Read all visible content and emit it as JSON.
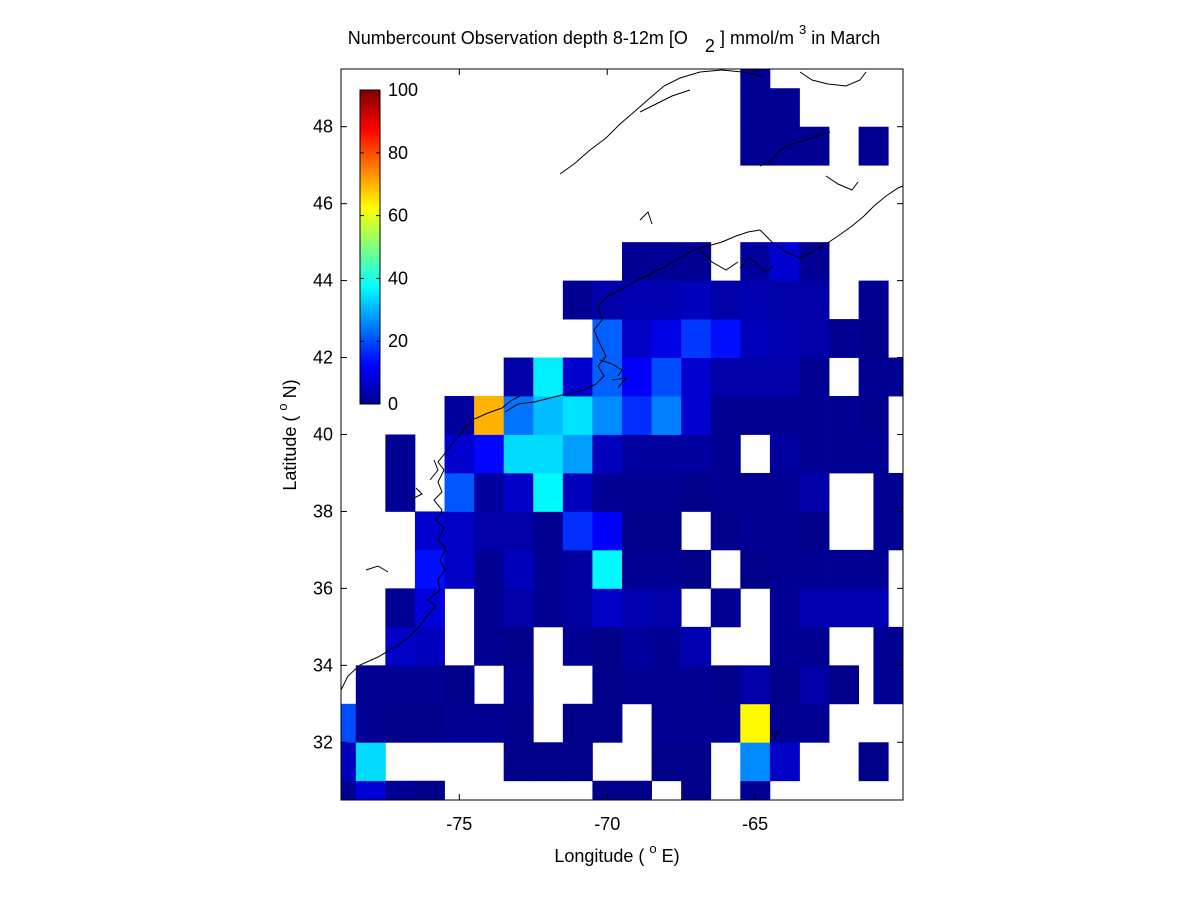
{
  "chart_data": {
    "type": "heatmap",
    "title": {
      "main": "Numbercount Observation depth 8-12m [O",
      "sub": "2",
      "unit_start": "] mmol/m",
      "sup": "3",
      "end": " in March"
    },
    "xlabel": {
      "start": "Longitude ( ",
      "sup": "o",
      "end": "E)"
    },
    "ylabel": {
      "start": "Latitude ( ",
      "sup": "o",
      "end": "N)"
    },
    "xlim": [
      -79,
      -60
    ],
    "ylim": [
      30.5,
      49.5
    ],
    "x_ticks": [
      -75,
      -70,
      -65
    ],
    "x_tick_labels": [
      "-75",
      "-70",
      "-65"
    ],
    "y_ticks": [
      32,
      34,
      36,
      38,
      40,
      42,
      44,
      46,
      48
    ],
    "y_tick_labels": [
      "32",
      "34",
      "36",
      "38",
      "40",
      "42",
      "44",
      "46",
      "48"
    ],
    "cell_size_deg": 1,
    "colorbar": {
      "range": [
        0,
        100
      ],
      "ticks": [
        0,
        20,
        40,
        60,
        80,
        100
      ],
      "tick_labels": [
        "0",
        "20",
        "40",
        "60",
        "80",
        "100"
      ],
      "colormap": "jet",
      "placement": "inside-top-left"
    },
    "cells": [
      {
        "lon": -79,
        "lat": 30.5,
        "v": 2
      },
      {
        "lon": -78,
        "lat": 30.5,
        "v": 9
      },
      {
        "lon": -77,
        "lat": 30.5,
        "v": 2
      },
      {
        "lon": -76,
        "lat": 30.5,
        "v": 1
      },
      {
        "lon": -70,
        "lat": 30.5,
        "v": 1
      },
      {
        "lon": -69,
        "lat": 30.5,
        "v": 1
      },
      {
        "lon": -67,
        "lat": 30.5,
        "v": 1
      },
      {
        "lon": -65,
        "lat": 30.5,
        "v": 2
      },
      {
        "lon": -79,
        "lat": 31.5,
        "v": 6
      },
      {
        "lon": -78,
        "lat": 31.5,
        "v": 34
      },
      {
        "lon": -73,
        "lat": 31.5,
        "v": 1
      },
      {
        "lon": -72,
        "lat": 31.5,
        "v": 1
      },
      {
        "lon": -71,
        "lat": 31.5,
        "v": 1
      },
      {
        "lon": -68,
        "lat": 31.5,
        "v": 1
      },
      {
        "lon": -67,
        "lat": 31.5,
        "v": 1
      },
      {
        "lon": -65,
        "lat": 31.5,
        "v": 26
      },
      {
        "lon": -64,
        "lat": 31.5,
        "v": 7
      },
      {
        "lon": -61,
        "lat": 31.5,
        "v": 1
      },
      {
        "lon": -79,
        "lat": 32.5,
        "v": 20
      },
      {
        "lon": -78,
        "lat": 32.5,
        "v": 2
      },
      {
        "lon": -77,
        "lat": 32.5,
        "v": 1
      },
      {
        "lon": -76,
        "lat": 32.5,
        "v": 1
      },
      {
        "lon": -75,
        "lat": 32.5,
        "v": 2
      },
      {
        "lon": -74,
        "lat": 32.5,
        "v": 2
      },
      {
        "lon": -73,
        "lat": 32.5,
        "v": 1
      },
      {
        "lon": -71,
        "lat": 32.5,
        "v": 1
      },
      {
        "lon": -70,
        "lat": 32.5,
        "v": 1
      },
      {
        "lon": -68,
        "lat": 32.5,
        "v": 2
      },
      {
        "lon": -67,
        "lat": 32.5,
        "v": 2
      },
      {
        "lon": -66,
        "lat": 32.5,
        "v": 2
      },
      {
        "lon": -65,
        "lat": 32.5,
        "v": 63
      },
      {
        "lon": -64,
        "lat": 32.5,
        "v": 2
      },
      {
        "lon": -63,
        "lat": 32.5,
        "v": 2
      },
      {
        "lon": -78,
        "lat": 33.5,
        "v": 2
      },
      {
        "lon": -77,
        "lat": 33.5,
        "v": 2
      },
      {
        "lon": -76,
        "lat": 33.5,
        "v": 2
      },
      {
        "lon": -75,
        "lat": 33.5,
        "v": 1
      },
      {
        "lon": -73,
        "lat": 33.5,
        "v": 2
      },
      {
        "lon": -70,
        "lat": 33.5,
        "v": 1
      },
      {
        "lon": -69,
        "lat": 33.5,
        "v": 2
      },
      {
        "lon": -68,
        "lat": 33.5,
        "v": 2
      },
      {
        "lon": -67,
        "lat": 33.5,
        "v": 2
      },
      {
        "lon": -66,
        "lat": 33.5,
        "v": 1
      },
      {
        "lon": -65,
        "lat": 33.5,
        "v": 4
      },
      {
        "lon": -64,
        "lat": 33.5,
        "v": 1
      },
      {
        "lon": -63,
        "lat": 33.5,
        "v": 4
      },
      {
        "lon": -62,
        "lat": 33.5,
        "v": 1
      },
      {
        "lon": -60.5,
        "lat": 33.5,
        "v": 2
      },
      {
        "lon": -77,
        "lat": 34.5,
        "v": 7
      },
      {
        "lon": -76,
        "lat": 34.5,
        "v": 6
      },
      {
        "lon": -74,
        "lat": 34.5,
        "v": 2
      },
      {
        "lon": -73,
        "lat": 34.5,
        "v": 1
      },
      {
        "lon": -71,
        "lat": 34.5,
        "v": 2
      },
      {
        "lon": -70,
        "lat": 34.5,
        "v": 1
      },
      {
        "lon": -69,
        "lat": 34.5,
        "v": 3
      },
      {
        "lon": -68,
        "lat": 34.5,
        "v": 2
      },
      {
        "lon": -67,
        "lat": 34.5,
        "v": 5
      },
      {
        "lon": -64,
        "lat": 34.5,
        "v": 2
      },
      {
        "lon": -63,
        "lat": 34.5,
        "v": 2
      },
      {
        "lon": -60.5,
        "lat": 34.5,
        "v": 2
      },
      {
        "lon": -77,
        "lat": 35.5,
        "v": 2
      },
      {
        "lon": -76,
        "lat": 35.5,
        "v": 9
      },
      {
        "lon": -74,
        "lat": 35.5,
        "v": 2
      },
      {
        "lon": -73,
        "lat": 35.5,
        "v": 4
      },
      {
        "lon": -72,
        "lat": 35.5,
        "v": 2
      },
      {
        "lon": -71,
        "lat": 35.5,
        "v": 3
      },
      {
        "lon": -70,
        "lat": 35.5,
        "v": 7
      },
      {
        "lon": -69,
        "lat": 35.5,
        "v": 5
      },
      {
        "lon": -68,
        "lat": 35.5,
        "v": 4
      },
      {
        "lon": -66,
        "lat": 35.5,
        "v": 2
      },
      {
        "lon": -64,
        "lat": 35.5,
        "v": 2
      },
      {
        "lon": -63,
        "lat": 35.5,
        "v": 5
      },
      {
        "lon": -62,
        "lat": 35.5,
        "v": 5
      },
      {
        "lon": -61,
        "lat": 35.5,
        "v": 5
      },
      {
        "lon": -76,
        "lat": 36.5,
        "v": 14
      },
      {
        "lon": -75,
        "lat": 36.5,
        "v": 7
      },
      {
        "lon": -74,
        "lat": 36.5,
        "v": 2
      },
      {
        "lon": -73,
        "lat": 36.5,
        "v": 6
      },
      {
        "lon": -72,
        "lat": 36.5,
        "v": 2
      },
      {
        "lon": -71,
        "lat": 36.5,
        "v": 3
      },
      {
        "lon": -70,
        "lat": 36.5,
        "v": 37
      },
      {
        "lon": -69,
        "lat": 36.5,
        "v": 2
      },
      {
        "lon": -68,
        "lat": 36.5,
        "v": 2
      },
      {
        "lon": -67,
        "lat": 36.5,
        "v": 1
      },
      {
        "lon": -65,
        "lat": 36.5,
        "v": 1
      },
      {
        "lon": -64,
        "lat": 36.5,
        "v": 2
      },
      {
        "lon": -63,
        "lat": 36.5,
        "v": 2
      },
      {
        "lon": -62,
        "lat": 36.5,
        "v": 2
      },
      {
        "lon": -61,
        "lat": 36.5,
        "v": 2
      },
      {
        "lon": -76,
        "lat": 37.5,
        "v": 8
      },
      {
        "lon": -75,
        "lat": 37.5,
        "v": 7
      },
      {
        "lon": -74,
        "lat": 37.5,
        "v": 4
      },
      {
        "lon": -73,
        "lat": 37.5,
        "v": 4
      },
      {
        "lon": -72,
        "lat": 37.5,
        "v": 2
      },
      {
        "lon": -71,
        "lat": 37.5,
        "v": 17
      },
      {
        "lon": -70,
        "lat": 37.5,
        "v": 12
      },
      {
        "lon": -69,
        "lat": 37.5,
        "v": 1
      },
      {
        "lon": -68,
        "lat": 37.5,
        "v": 1
      },
      {
        "lon": -66,
        "lat": 37.5,
        "v": 1
      },
      {
        "lon": -65,
        "lat": 37.5,
        "v": 2
      },
      {
        "lon": -64,
        "lat": 37.5,
        "v": 2
      },
      {
        "lon": -63,
        "lat": 37.5,
        "v": 1
      },
      {
        "lon": -60.5,
        "lat": 37.5,
        "v": 2
      },
      {
        "lon": -77,
        "lat": 38.5,
        "v": 2
      },
      {
        "lon": -75,
        "lat": 38.5,
        "v": 21
      },
      {
        "lon": -74,
        "lat": 38.5,
        "v": 3
      },
      {
        "lon": -73,
        "lat": 38.5,
        "v": 7
      },
      {
        "lon": -72,
        "lat": 38.5,
        "v": 37
      },
      {
        "lon": -71,
        "lat": 38.5,
        "v": 6
      },
      {
        "lon": -70,
        "lat": 38.5,
        "v": 2
      },
      {
        "lon": -69,
        "lat": 38.5,
        "v": 2
      },
      {
        "lon": -68,
        "lat": 38.5,
        "v": 2
      },
      {
        "lon": -67,
        "lat": 38.5,
        "v": 1
      },
      {
        "lon": -66,
        "lat": 38.5,
        "v": 2
      },
      {
        "lon": -65,
        "lat": 38.5,
        "v": 2
      },
      {
        "lon": -64,
        "lat": 38.5,
        "v": 2
      },
      {
        "lon": -63,
        "lat": 38.5,
        "v": 4
      },
      {
        "lon": -60.5,
        "lat": 38.5,
        "v": 2
      },
      {
        "lon": -77,
        "lat": 39.5,
        "v": 2
      },
      {
        "lon": -75,
        "lat": 39.5,
        "v": 8
      },
      {
        "lon": -74,
        "lat": 39.5,
        "v": 13
      },
      {
        "lon": -73,
        "lat": 39.5,
        "v": 34
      },
      {
        "lon": -72,
        "lat": 39.5,
        "v": 34
      },
      {
        "lon": -71,
        "lat": 39.5,
        "v": 28
      },
      {
        "lon": -70,
        "lat": 39.5,
        "v": 6
      },
      {
        "lon": -69,
        "lat": 39.5,
        "v": 3
      },
      {
        "lon": -68,
        "lat": 39.5,
        "v": 3
      },
      {
        "lon": -67,
        "lat": 39.5,
        "v": 3
      },
      {
        "lon": -66,
        "lat": 39.5,
        "v": 2
      },
      {
        "lon": -64,
        "lat": 39.5,
        "v": 3
      },
      {
        "lon": -63,
        "lat": 39.5,
        "v": 2
      },
      {
        "lon": -62,
        "lat": 39.5,
        "v": 2
      },
      {
        "lon": -61,
        "lat": 39.5,
        "v": 2
      },
      {
        "lon": -75,
        "lat": 40.5,
        "v": 3
      },
      {
        "lon": -74,
        "lat": 40.5,
        "v": 70
      },
      {
        "lon": -73,
        "lat": 40.5,
        "v": 24
      },
      {
        "lon": -72,
        "lat": 40.5,
        "v": 31
      },
      {
        "lon": -71,
        "lat": 40.5,
        "v": 35
      },
      {
        "lon": -70,
        "lat": 40.5,
        "v": 26
      },
      {
        "lon": -69,
        "lat": 40.5,
        "v": 17
      },
      {
        "lon": -68,
        "lat": 40.5,
        "v": 25
      },
      {
        "lon": -67,
        "lat": 40.5,
        "v": 8
      },
      {
        "lon": -66,
        "lat": 40.5,
        "v": 2
      },
      {
        "lon": -65,
        "lat": 40.5,
        "v": 2
      },
      {
        "lon": -64,
        "lat": 40.5,
        "v": 2
      },
      {
        "lon": -63,
        "lat": 40.5,
        "v": 2
      },
      {
        "lon": -62,
        "lat": 40.5,
        "v": 2
      },
      {
        "lon": -61,
        "lat": 40.5,
        "v": 1
      },
      {
        "lon": -73,
        "lat": 41.5,
        "v": 4
      },
      {
        "lon": -72,
        "lat": 41.5,
        "v": 36
      },
      {
        "lon": -71,
        "lat": 41.5,
        "v": 8
      },
      {
        "lon": -70,
        "lat": 41.5,
        "v": 22
      },
      {
        "lon": -69,
        "lat": 41.5,
        "v": 12
      },
      {
        "lon": -68,
        "lat": 41.5,
        "v": 20
      },
      {
        "lon": -67,
        "lat": 41.5,
        "v": 8
      },
      {
        "lon": -66,
        "lat": 41.5,
        "v": 4
      },
      {
        "lon": -65,
        "lat": 41.5,
        "v": 4
      },
      {
        "lon": -64,
        "lat": 41.5,
        "v": 4
      },
      {
        "lon": -63,
        "lat": 41.5,
        "v": 2
      },
      {
        "lon": -61,
        "lat": 41.5,
        "v": 2
      },
      {
        "lon": -60.5,
        "lat": 41.5,
        "v": 2
      },
      {
        "lon": -70,
        "lat": 42.5,
        "v": 22
      },
      {
        "lon": -69,
        "lat": 42.5,
        "v": 7
      },
      {
        "lon": -68,
        "lat": 42.5,
        "v": 10
      },
      {
        "lon": -67,
        "lat": 42.5,
        "v": 18
      },
      {
        "lon": -66,
        "lat": 42.5,
        "v": 14
      },
      {
        "lon": -65,
        "lat": 42.5,
        "v": 6
      },
      {
        "lon": -64,
        "lat": 42.5,
        "v": 5
      },
      {
        "lon": -63,
        "lat": 42.5,
        "v": 4
      },
      {
        "lon": -62,
        "lat": 42.5,
        "v": 2
      },
      {
        "lon": -61,
        "lat": 42.5,
        "v": 1
      },
      {
        "lon": -71,
        "lat": 43.5,
        "v": 2
      },
      {
        "lon": -70,
        "lat": 43.5,
        "v": 4
      },
      {
        "lon": -69,
        "lat": 43.5,
        "v": 5
      },
      {
        "lon": -68,
        "lat": 43.5,
        "v": 5
      },
      {
        "lon": -67,
        "lat": 43.5,
        "v": 6
      },
      {
        "lon": -66,
        "lat": 43.5,
        "v": 4
      },
      {
        "lon": -65,
        "lat": 43.5,
        "v": 5
      },
      {
        "lon": -64,
        "lat": 43.5,
        "v": 4
      },
      {
        "lon": -63,
        "lat": 43.5,
        "v": 4
      },
      {
        "lon": -61,
        "lat": 43.5,
        "v": 2
      },
      {
        "lon": -69,
        "lat": 44.5,
        "v": 2
      },
      {
        "lon": -68,
        "lat": 44.5,
        "v": 2
      },
      {
        "lon": -67,
        "lat": 44.5,
        "v": 2
      },
      {
        "lon": -65,
        "lat": 44.5,
        "v": 3
      },
      {
        "lon": -64,
        "lat": 44.5,
        "v": 8
      },
      {
        "lon": -63,
        "lat": 44.5,
        "v": 2
      },
      {
        "lon": -65,
        "lat": 47.5,
        "v": 2
      },
      {
        "lon": -64,
        "lat": 47.5,
        "v": 2
      },
      {
        "lon": -63,
        "lat": 47.5,
        "v": 2
      },
      {
        "lon": -61,
        "lat": 47.5,
        "v": 2
      },
      {
        "lon": -65,
        "lat": 48.5,
        "v": 2
      },
      {
        "lon": -64,
        "lat": 48.5,
        "v": 2
      },
      {
        "lon": -65,
        "lat": 49.5,
        "v": 2
      }
    ]
  }
}
